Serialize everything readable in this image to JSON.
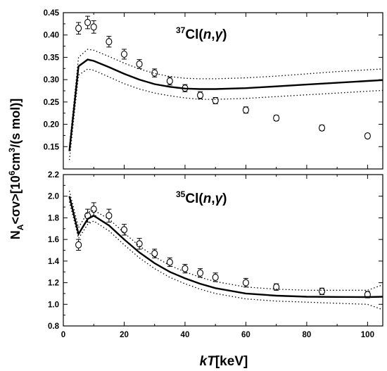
{
  "chart_data": [
    {
      "type": "scatter",
      "panel_label": {
        "sup": "37",
        "element": "Cl(",
        "n": "n",
        "comma": ",",
        "gamma": "γ",
        "close": ")"
      },
      "xlim": [
        0,
        105
      ],
      "ylim": [
        0.1,
        0.45
      ],
      "xticks": [
        0,
        20,
        40,
        60,
        80,
        100
      ],
      "yticks": [
        0.15,
        0.2,
        0.25,
        0.3,
        0.35,
        0.4,
        0.45
      ],
      "ytick_labels": [
        "0.15",
        "0.20",
        "0.25",
        "0.30",
        "0.35",
        "0.40",
        "0.45"
      ],
      "series": [
        {
          "style": "points-with-errorbars",
          "x": [
            5,
            8,
            10,
            15,
            20,
            25,
            30,
            35,
            40,
            45,
            50,
            60,
            70,
            85,
            100
          ],
          "y": [
            0.415,
            0.428,
            0.418,
            0.385,
            0.357,
            0.335,
            0.315,
            0.297,
            0.281,
            0.265,
            0.253,
            0.232,
            0.214,
            0.192,
            0.174
          ],
          "err": [
            0.013,
            0.014,
            0.014,
            0.012,
            0.011,
            0.01,
            0.009,
            0.009,
            0.008,
            0.008,
            0.007,
            0.007,
            0.006,
            0.006,
            0.005
          ]
        },
        {
          "style": "solid",
          "x": [
            2,
            5,
            8,
            10,
            15,
            20,
            25,
            30,
            35,
            40,
            45,
            50,
            60,
            70,
            80,
            90,
            100,
            105
          ],
          "y": [
            0.14,
            0.33,
            0.345,
            0.342,
            0.328,
            0.313,
            0.3,
            0.29,
            0.284,
            0.28,
            0.279,
            0.279,
            0.281,
            0.285,
            0.289,
            0.293,
            0.297,
            0.299
          ]
        },
        {
          "style": "dotted",
          "x": [
            2,
            5,
            8,
            10,
            15,
            20,
            25,
            30,
            35,
            40,
            45,
            50,
            60,
            70,
            80,
            90,
            100,
            105
          ],
          "y": [
            0.15,
            0.35,
            0.368,
            0.366,
            0.352,
            0.337,
            0.324,
            0.314,
            0.307,
            0.303,
            0.302,
            0.302,
            0.304,
            0.308,
            0.313,
            0.318,
            0.322,
            0.324
          ]
        },
        {
          "style": "dotted",
          "x": [
            2,
            5,
            8,
            10,
            15,
            20,
            25,
            30,
            35,
            40,
            45,
            50,
            60,
            70,
            80,
            90,
            100,
            105
          ],
          "y": [
            0.12,
            0.31,
            0.324,
            0.321,
            0.306,
            0.291,
            0.279,
            0.27,
            0.264,
            0.259,
            0.256,
            0.256,
            0.258,
            0.262,
            0.266,
            0.27,
            0.274,
            0.276
          ]
        }
      ]
    },
    {
      "type": "scatter",
      "panel_label": {
        "sup": "35",
        "element": "Cl(",
        "n": "n",
        "comma": ",",
        "gamma": "γ",
        "close": ")"
      },
      "xlim": [
        0,
        105
      ],
      "ylim": [
        0.8,
        2.2
      ],
      "xticks": [
        0,
        20,
        40,
        60,
        80,
        100
      ],
      "xtick_labels": [
        "0",
        "20",
        "40",
        "60",
        "80",
        "100"
      ],
      "yticks": [
        0.8,
        1.0,
        1.2,
        1.4,
        1.6,
        1.8,
        2.0,
        2.2
      ],
      "ytick_labels": [
        "0.8",
        "1.0",
        "1.2",
        "1.4",
        "1.6",
        "1.8",
        "2.0",
        "2.2"
      ],
      "series": [
        {
          "style": "points-with-errorbars",
          "x": [
            5,
            8,
            10,
            15,
            20,
            25,
            30,
            35,
            40,
            45,
            50,
            60,
            70,
            85,
            100
          ],
          "y": [
            1.55,
            1.82,
            1.88,
            1.82,
            1.69,
            1.56,
            1.47,
            1.39,
            1.33,
            1.29,
            1.25,
            1.2,
            1.16,
            1.12,
            1.09
          ],
          "err": [
            0.05,
            0.06,
            0.06,
            0.06,
            0.05,
            0.05,
            0.04,
            0.04,
            0.04,
            0.04,
            0.04,
            0.04,
            0.03,
            0.03,
            0.03
          ]
        },
        {
          "style": "solid",
          "x": [
            2,
            5,
            8,
            10,
            15,
            20,
            25,
            30,
            35,
            40,
            45,
            50,
            60,
            70,
            80,
            90,
            100,
            105
          ],
          "y": [
            2.0,
            1.65,
            1.79,
            1.82,
            1.73,
            1.6,
            1.48,
            1.38,
            1.3,
            1.24,
            1.19,
            1.15,
            1.1,
            1.08,
            1.07,
            1.068,
            1.067,
            1.07
          ]
        },
        {
          "style": "dotted",
          "x": [
            2,
            5,
            8,
            10,
            15,
            20,
            25,
            30,
            35,
            40,
            45,
            50,
            60,
            70,
            80,
            90,
            100,
            105
          ],
          "y": [
            2.05,
            1.71,
            1.85,
            1.87,
            1.79,
            1.66,
            1.54,
            1.44,
            1.36,
            1.3,
            1.25,
            1.21,
            1.16,
            1.14,
            1.13,
            1.13,
            1.13,
            1.18
          ]
        },
        {
          "style": "dotted",
          "x": [
            2,
            5,
            8,
            10,
            15,
            20,
            25,
            30,
            35,
            40,
            45,
            50,
            60,
            70,
            80,
            90,
            100,
            105
          ],
          "y": [
            1.95,
            1.61,
            1.74,
            1.77,
            1.68,
            1.55,
            1.43,
            1.33,
            1.25,
            1.19,
            1.14,
            1.1,
            1.05,
            1.03,
            1.02,
            1.01,
            1.0,
            0.95
          ]
        }
      ]
    }
  ],
  "axes": {
    "ylabel": {
      "a": "N",
      "a_sub": "A",
      "b": "<σv>[10",
      "b_sup": "6",
      "c": "cm",
      "c_sup": "3",
      "d": "/(s mol)]"
    },
    "xlabel": {
      "italic": "kT",
      "rest": "[keV]"
    }
  }
}
